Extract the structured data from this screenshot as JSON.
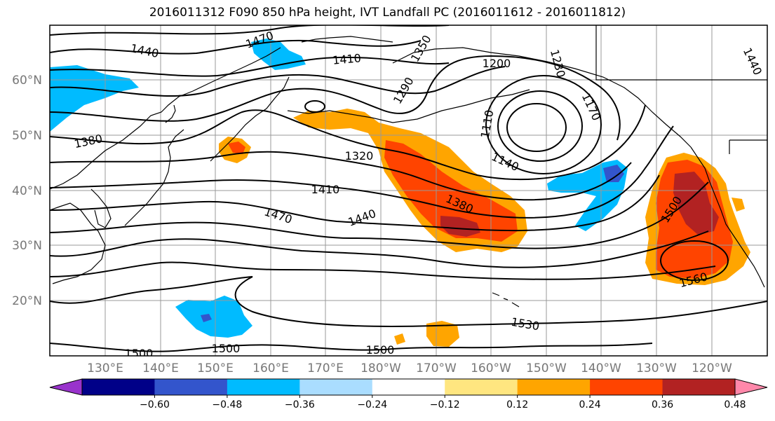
{
  "title": "2016011312 F090 850 hPa height, IVT Landfall PC (2016011612 - 2016011812)",
  "lat_labels": [
    "60°N",
    "50°N",
    "40°N",
    "30°N",
    "20°N"
  ],
  "lon_labels": [
    "130°E",
    "140°E",
    "150°E",
    "160°E",
    "170°E",
    "180°W",
    "170°W",
    "160°W",
    "150°W",
    "140°W",
    "130°W",
    "120°W"
  ],
  "colorbar": {
    "ticks": [
      "−0.60",
      "−0.48",
      "−0.36",
      "−0.24",
      "−0.12",
      "0.12",
      "0.24",
      "0.36",
      "0.48",
      "0.60"
    ],
    "colors": [
      "#9933cc",
      "#000088",
      "#3355cc",
      "#00bbff",
      "#aaddff",
      "#ffffff",
      "#ffe680",
      "#ffa500",
      "#ff4400",
      "#b22222",
      "#ff88aa"
    ]
  },
  "contour_labels": [
    "1440",
    "1470",
    "1410",
    "1350",
    "1290",
    "1200",
    "1230",
    "1170",
    "1110",
    "1140",
    "1320",
    "1380",
    "1410",
    "1380",
    "1470",
    "1440",
    "1500",
    "1560",
    "1530",
    "1500",
    "1500",
    "1500",
    "1440"
  ],
  "colors": {
    "land_outline": "#000000",
    "grid": "#999999",
    "contour": "#000000"
  }
}
